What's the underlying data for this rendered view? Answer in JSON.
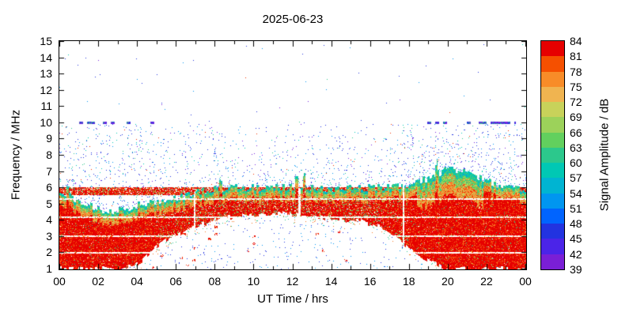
{
  "chart_data": {
    "type": "heatmap",
    "title": "2025-06-23",
    "xlabel": "UT Time / hrs",
    "ylabel": "Frequency / MHz",
    "colorbar_label": "Signal Amplitude / dB",
    "xlim": [
      0,
      24
    ],
    "ylim": [
      1,
      15
    ],
    "x_tick_hours": [
      0,
      2,
      4,
      6,
      8,
      10,
      12,
      14,
      16,
      18,
      20,
      22,
      24
    ],
    "x_tick_labels": [
      "00",
      "02",
      "04",
      "06",
      "08",
      "10",
      "12",
      "14",
      "16",
      "18",
      "20",
      "22",
      "00"
    ],
    "y_ticks": [
      1,
      2,
      3,
      4,
      5,
      6,
      7,
      8,
      9,
      10,
      11,
      12,
      13,
      14,
      15
    ],
    "colorbar": {
      "tick_labels": [
        39,
        42,
        45,
        48,
        51,
        54,
        57,
        60,
        63,
        66,
        69,
        72,
        75,
        78,
        81,
        84
      ],
      "colors_bottom_to_top": [
        "#7a1fd6",
        "#4b24e8",
        "#2233e0",
        "#0064ff",
        "#0096f0",
        "#00b4d2",
        "#00c8b4",
        "#2cc88c",
        "#62d05e",
        "#9cd25a",
        "#c8d25a",
        "#f0b450",
        "#f88c28",
        "#f55000",
        "#e60000"
      ]
    },
    "envelope": {
      "hours": [
        0,
        1,
        2,
        3,
        4,
        5,
        6,
        7,
        8,
        9,
        10,
        11,
        12,
        13,
        14,
        15,
        16,
        17,
        18,
        19,
        20,
        21,
        22,
        23,
        24
      ],
      "f_top": [
        5.8,
        5.2,
        4.7,
        4.6,
        4.9,
        5.1,
        5.4,
        5.7,
        5.9,
        6.0,
        6.0,
        6.0,
        6.1,
        6.0,
        6.0,
        6.0,
        6.0,
        6.0,
        6.2,
        6.6,
        7.2,
        7.0,
        6.4,
        6.1,
        5.9
      ],
      "f_bottom": [
        1.0,
        1.0,
        1.0,
        1.0,
        1.3,
        2.4,
        3.1,
        3.6,
        4.0,
        4.2,
        4.3,
        4.35,
        4.35,
        4.3,
        4.1,
        4.0,
        3.8,
        3.3,
        2.2,
        1.5,
        1.0,
        1.0,
        1.0,
        1.0,
        1.0
      ]
    },
    "persistent_line_mhz": [
      5.55,
      6.05
    ],
    "white_line_freqs": [
      2.0,
      3.0,
      4.2,
      5.3
    ],
    "dropout_hours": [
      6.95,
      12.35,
      17.7
    ],
    "cap_spike_hours": [
      0.4,
      8.3,
      12.2,
      12.6,
      19.4
    ],
    "dash_line": {
      "freq_mhz": 10,
      "hour_ranges": [
        [
          0.6,
          5.0
        ],
        [
          17.9,
          23.5
        ]
      ]
    },
    "noise_top_mhz": 10.2
  },
  "palette": {
    "red": "#e60000",
    "red2": "#f03000",
    "orange": "#f87820",
    "lorange": "#fa9c46",
    "khaki": "#c8d25a",
    "green": "#62d05e",
    "teal": "#2cc88c",
    "cyan": "#00c8b4",
    "lblue": "#0096f0",
    "blue": "#2233e0",
    "violet": "#7722e0"
  }
}
